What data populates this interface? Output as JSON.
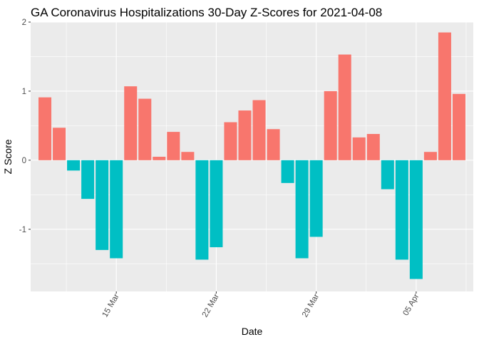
{
  "chart_data": {
    "type": "bar",
    "title": "GA Coronavirus Hospitalizations 30-Day Z-Scores for 2021-04-08",
    "xlabel": "Date",
    "ylabel": "Z Score",
    "x": [
      "2021-03-10",
      "2021-03-11",
      "2021-03-12",
      "2021-03-13",
      "2021-03-14",
      "2021-03-15",
      "2021-03-16",
      "2021-03-17",
      "2021-03-18",
      "2021-03-19",
      "2021-03-20",
      "2021-03-21",
      "2021-03-22",
      "2021-03-23",
      "2021-03-24",
      "2021-03-25",
      "2021-03-26",
      "2021-03-27",
      "2021-03-28",
      "2021-03-29",
      "2021-03-30",
      "2021-03-31",
      "2021-04-01",
      "2021-04-02",
      "2021-04-03",
      "2021-04-04",
      "2021-04-05",
      "2021-04-06",
      "2021-04-07",
      "2021-04-08"
    ],
    "values": [
      0.91,
      0.47,
      -0.15,
      -0.56,
      -1.3,
      -1.42,
      1.07,
      0.89,
      0.05,
      0.41,
      0.12,
      -1.44,
      -1.26,
      0.55,
      0.72,
      0.87,
      0.45,
      -0.33,
      -1.42,
      -1.11,
      1.0,
      1.53,
      0.33,
      0.38,
      -0.42,
      -1.44,
      -1.72,
      0.12,
      1.85,
      0.96
    ],
    "xlim": [
      "2021-03-09",
      "2021-04-09"
    ],
    "ylim": [
      -1.9,
      2.0
    ],
    "x_ticks": [
      {
        "date": "2021-03-15",
        "label": "15 Mar"
      },
      {
        "date": "2021-03-22",
        "label": "22 Mar"
      },
      {
        "date": "2021-03-29",
        "label": "29 Mar"
      },
      {
        "date": "2021-04-05",
        "label": "05 Apr"
      }
    ],
    "y_ticks": [
      -1,
      0,
      1,
      2
    ],
    "grid": true,
    "legend": "none",
    "colors": {
      "positive": "#F8766D",
      "negative": "#00BFC4",
      "panel": "#EBEBEB",
      "grid": "#FFFFFF"
    }
  }
}
